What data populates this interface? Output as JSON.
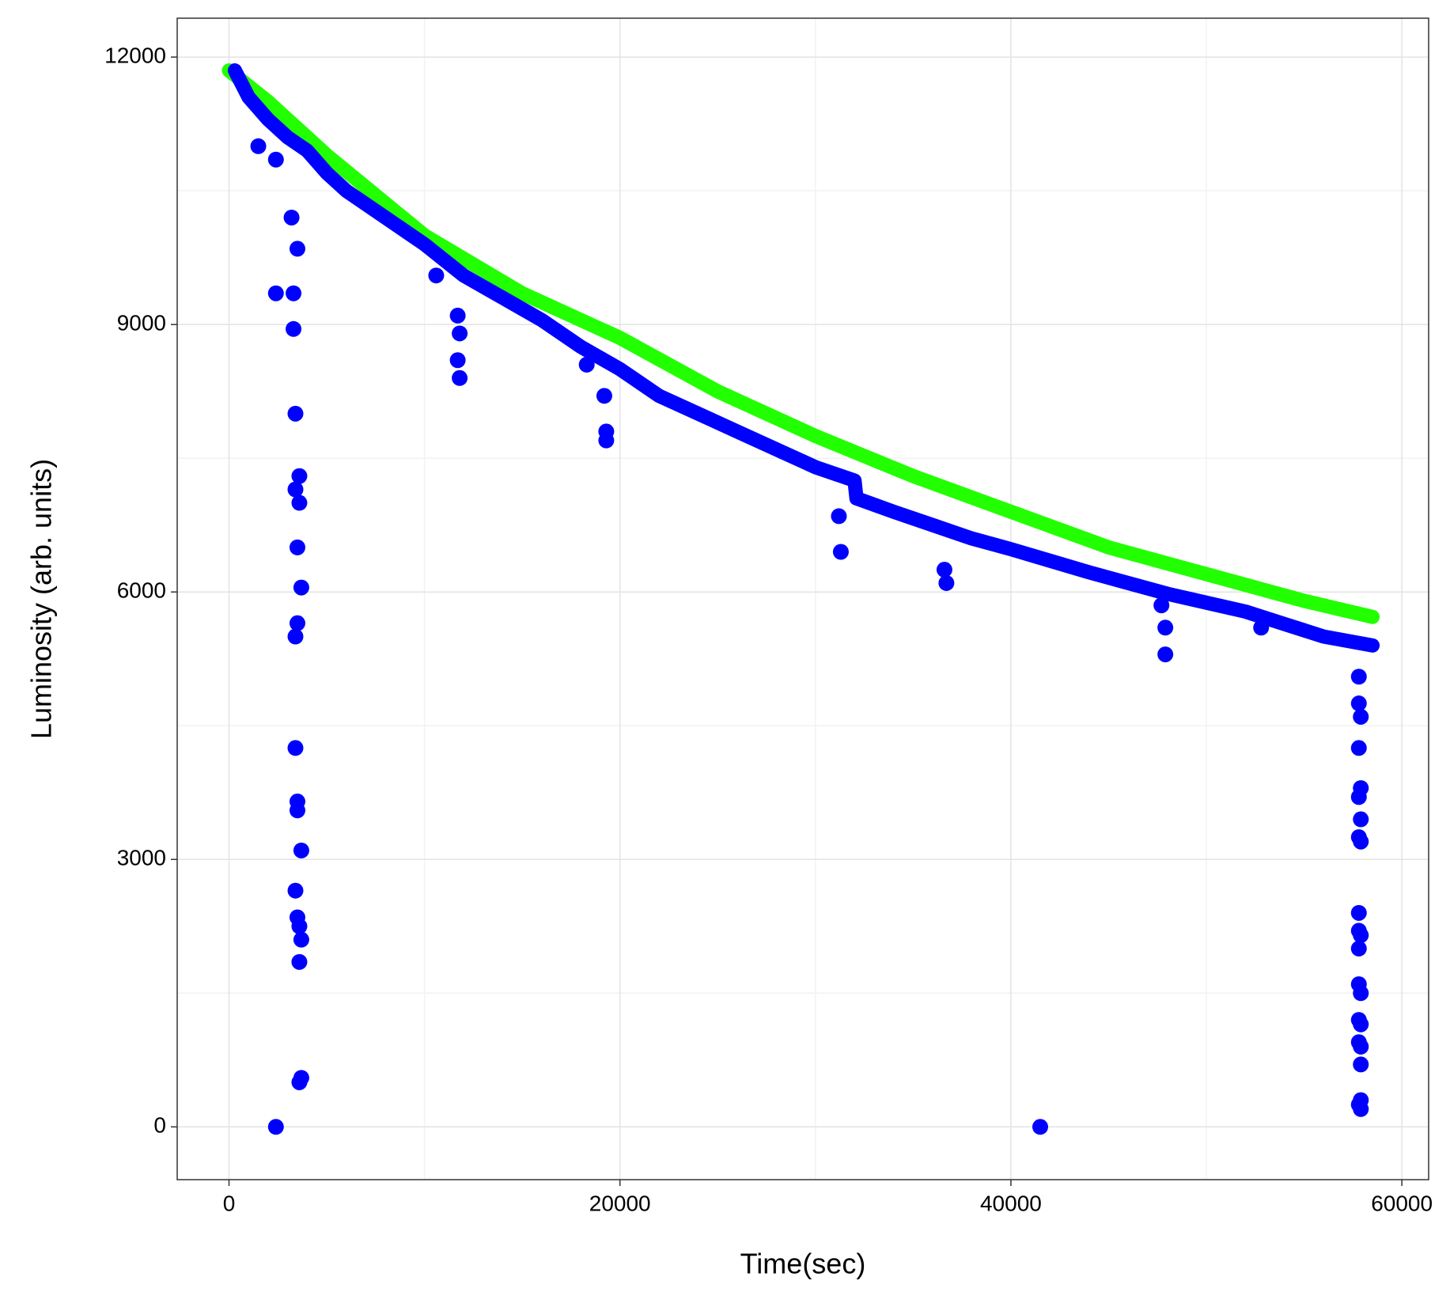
{
  "chart_data": {
    "type": "scatter",
    "xlabel": "Time(sec)",
    "ylabel": "Luminosity (arb. units)",
    "xlim": [
      -2650,
      61370
    ],
    "ylim": [
      -592,
      12436
    ],
    "xticks": [
      0,
      20000,
      40000,
      60000
    ],
    "yticks": [
      0,
      3000,
      6000,
      9000,
      12000
    ],
    "grid": true,
    "series": [
      {
        "type": "line",
        "color": "#22ff00",
        "x": [
          0,
          2000,
          5000,
          10000,
          15000,
          20000,
          25000,
          30000,
          35000,
          40000,
          45000,
          50000,
          55000,
          58500
        ],
        "values": [
          11850,
          11500,
          10900,
          10000,
          9350,
          8850,
          8250,
          7750,
          7300,
          6900,
          6500,
          6200,
          5900,
          5720
        ]
      },
      {
        "type": "line",
        "color": "#0000ff",
        "x": [
          300,
          1000,
          2000,
          3000,
          4000,
          5000,
          6000,
          8000,
          10000,
          12000,
          14000,
          16000,
          18000,
          20000,
          22000,
          24000,
          26000,
          28000,
          30000,
          32000,
          32100,
          34000,
          36000,
          38000,
          40000,
          42000,
          44000,
          46000,
          48000,
          50000,
          52000,
          54000,
          56000,
          58500
        ],
        "values": [
          11850,
          11550,
          11300,
          11100,
          10950,
          10700,
          10500,
          10200,
          9900,
          9550,
          9300,
          9050,
          8750,
          8500,
          8200,
          8000,
          7800,
          7600,
          7400,
          7250,
          7050,
          6900,
          6750,
          6600,
          6480,
          6350,
          6220,
          6100,
          5980,
          5880,
          5780,
          5640,
          5500,
          5400
        ]
      },
      {
        "type": "scatter",
        "color": "#0000ff",
        "x": [
          1500,
          2400,
          2400,
          2400,
          3200,
          3300,
          3300,
          3400,
          3500,
          3400,
          3600,
          3600,
          3500,
          3700,
          3500,
          3400,
          3400,
          3500,
          3500,
          3700,
          3400,
          3500,
          3600,
          3700,
          3600,
          3700,
          3600,
          10600,
          11700,
          11800,
          11700,
          11800,
          18300,
          19200,
          19300,
          19300,
          31200,
          31300,
          36600,
          36700,
          41500,
          47700,
          47900,
          47900,
          52800,
          57800,
          57800,
          57900,
          57800,
          57900,
          57800,
          57900,
          57800,
          57900,
          57800,
          57800,
          57900,
          57800,
          57800,
          57900,
          57800,
          57900,
          57800,
          57900,
          57900,
          57900,
          57800,
          57900
        ],
        "values": [
          11000,
          10850,
          9350,
          0,
          10200,
          9350,
          8950,
          8000,
          9850,
          7150,
          7300,
          7000,
          6500,
          6050,
          5650,
          5500,
          4250,
          3650,
          3550,
          3100,
          2650,
          2350,
          2250,
          2100,
          1850,
          550,
          500,
          9550,
          9100,
          8900,
          8600,
          8400,
          8550,
          8200,
          7800,
          7700,
          6850,
          6450,
          6250,
          6100,
          0,
          5850,
          5600,
          5300,
          5600,
          5050,
          4750,
          4600,
          4250,
          3800,
          3700,
          3450,
          3250,
          3200,
          2400,
          2200,
          2150,
          2000,
          1600,
          1500,
          1200,
          1150,
          950,
          900,
          700,
          300,
          250,
          200
        ]
      }
    ]
  }
}
